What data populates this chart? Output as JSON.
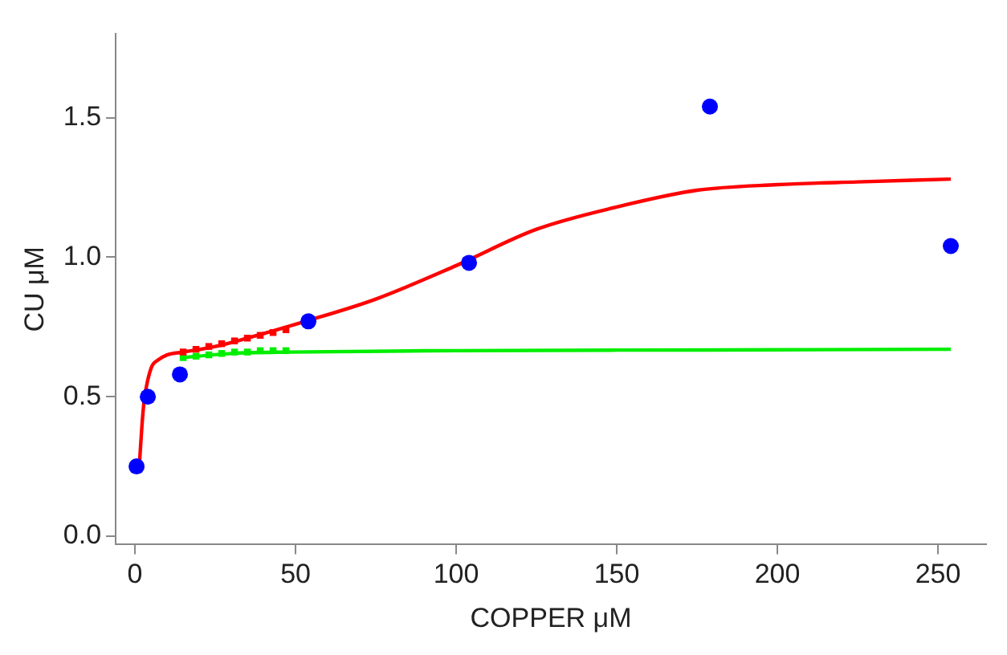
{
  "chart_data": {
    "type": "line",
    "xlabel": "COPPER μM",
    "ylabel": "CU μM",
    "xlim": [
      -6,
      265
    ],
    "xticks": [
      0,
      50,
      100,
      150,
      200,
      250
    ],
    "ylim": [
      -0.03,
      1.8
    ],
    "yticks": [
      {
        "value": 0,
        "label": "0.0"
      },
      0.5,
      {
        "value": 1,
        "label": "1.0"
      },
      1.5
    ],
    "grid": false,
    "legend": false,
    "series": [
      {
        "type": "line",
        "color": "#ff0000",
        "marker": "none",
        "x": [
          1.4,
          2.2,
          2.9,
          4,
          5.3,
          7,
          10,
          15,
          25,
          35,
          53,
          75,
          100,
          125,
          150,
          175,
          200,
          225,
          254
        ],
        "values": [
          0.26,
          0.4,
          0.49,
          0.56,
          0.61,
          0.63,
          0.65,
          0.66,
          0.68,
          0.71,
          0.77,
          0.85,
          0.97,
          1.1,
          1.18,
          1.24,
          1.26,
          1.27,
          1.28
        ]
      },
      {
        "type": "line",
        "color": "#00ee00",
        "marker": "none",
        "x": [
          15,
          30,
          48,
          100,
          150,
          200,
          254
        ],
        "values": [
          0.64,
          0.655,
          0.66,
          0.665,
          0.667,
          0.668,
          0.67
        ]
      },
      {
        "type": "scatter",
        "color": "#ff0000",
        "marker": "square",
        "x": [
          15,
          19,
          23,
          27,
          31,
          35,
          39,
          43,
          47
        ],
        "values": [
          0.66,
          0.67,
          0.68,
          0.69,
          0.7,
          0.71,
          0.72,
          0.73,
          0.74
        ]
      },
      {
        "type": "scatter",
        "color": "#00ee00",
        "marker": "square",
        "x": [
          15,
          19,
          23,
          27,
          31,
          35,
          39,
          43,
          47
        ],
        "values": [
          0.64,
          0.645,
          0.65,
          0.655,
          0.66,
          0.66,
          0.665,
          0.665,
          0.665
        ]
      },
      {
        "type": "scatter",
        "color": "#0000ff",
        "marker": "circle",
        "x": [
          0.5,
          4,
          14,
          54,
          104,
          179,
          254
        ],
        "values": [
          0.25,
          0.5,
          0.58,
          0.77,
          0.98,
          1.54,
          1.04
        ]
      }
    ]
  }
}
